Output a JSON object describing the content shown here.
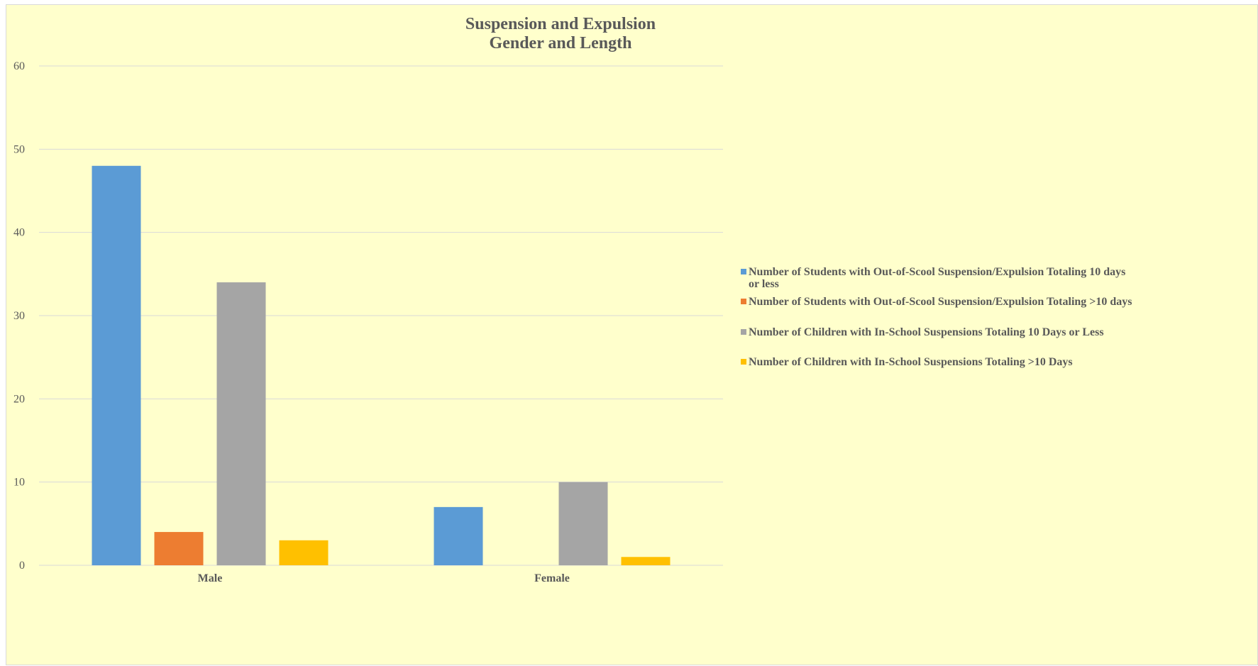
{
  "chart_data": {
    "type": "bar",
    "title_lines": [
      "Suspension and Expulsion",
      "Gender and Length"
    ],
    "categories": [
      "Male",
      "Female"
    ],
    "series": [
      {
        "name": "Number of Students with Out-of-Scool Suspension/Expulsion Totaling 10 days or less",
        "name_lines": [
          "Number of Students with Out-of-Scool Suspension/Expulsion Totaling 10 days",
          "or less"
        ],
        "values": [
          48,
          7
        ],
        "color": "#5b9bd5"
      },
      {
        "name": "Number of Students with Out-of-Scool Suspension/Expulsion Totaling >10 days",
        "name_lines": [
          "Number of Students with Out-of-Scool Suspension/Expulsion Totaling >10 days"
        ],
        "values": [
          4,
          0
        ],
        "color": "#ed7d31"
      },
      {
        "name": "Number of Children with In-School Suspensions Totaling 10 Days or Less",
        "name_lines": [
          "Number of Children with In-School Suspensions Totaling 10 Days or Less"
        ],
        "values": [
          34,
          10
        ],
        "color": "#a5a5a5"
      },
      {
        "name": "Number of Children with In-School Suspensions Totaling >10 Days",
        "name_lines": [
          "Number of Children with In-School Suspensions Totaling >10 Days"
        ],
        "values": [
          3,
          1
        ],
        "color": "#ffc000"
      }
    ],
    "ylim": [
      0,
      60
    ],
    "yticks": [
      0,
      10,
      20,
      30,
      40,
      50,
      60
    ],
    "grid": true,
    "legend_position": "right",
    "xlabel": "",
    "ylabel": ""
  },
  "colors": {
    "background": "#ffffcc",
    "gridline": "#d9d9d9",
    "text": "#595959"
  }
}
